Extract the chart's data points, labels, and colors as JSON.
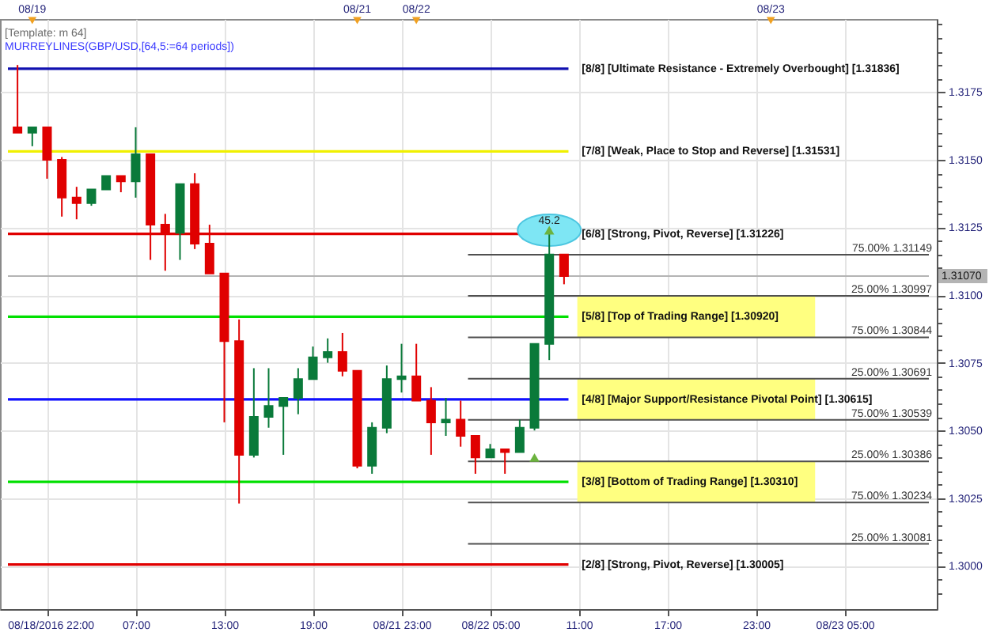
{
  "chart_data": {
    "type": "candlestick",
    "annotations": [
      "[Template: m 64]",
      "MURREYLINES(GBP/USD,[64,5:=64 periods])",
      "08/19",
      "08/21",
      "08/22",
      "08/23",
      {
        "text": "45.2",
        "y": 1.3124
      }
    ],
    "categories": [
      null,
      null,
      "08/18/2016 22:00",
      null,
      null,
      null,
      null,
      null,
      "07:00",
      null,
      null,
      null,
      null,
      null,
      "13:00",
      null,
      null,
      null,
      null,
      null,
      "19:00",
      null,
      null,
      null,
      null,
      null,
      "08/21 23:00",
      null,
      null,
      null,
      null,
      null,
      "08/22 05:00",
      null,
      null,
      null,
      null,
      null,
      "11:00",
      null,
      null,
      null,
      null,
      null,
      "17:00",
      null,
      null,
      null,
      null,
      null,
      "23:00",
      null,
      null,
      null,
      null,
      null,
      "08/23 05:00",
      null,
      null,
      null,
      null,
      null
    ],
    "ohlc": [
      [
        1.3162,
        1.3185,
        1.316,
        1.316
      ],
      [
        1.316,
        1.3162,
        1.3155,
        1.3162
      ],
      [
        1.3162,
        1.3162,
        1.3143,
        1.315
      ],
      [
        1.315,
        1.3151,
        1.3129,
        1.3136
      ],
      [
        1.3136,
        1.314,
        1.3128,
        1.3134
      ],
      [
        1.3134,
        1.3139,
        1.3133,
        1.3139
      ],
      [
        1.3139,
        1.3144,
        1.3139,
        1.3144
      ],
      [
        1.3144,
        1.3144,
        1.3138,
        1.3142
      ],
      [
        1.3142,
        1.3162,
        1.3136,
        1.3152
      ],
      [
        1.3152,
        1.3152,
        1.3113,
        1.3126
      ],
      [
        1.3126,
        1.313,
        1.3109,
        1.3123
      ],
      [
        1.3123,
        1.3141,
        1.3113,
        1.3141
      ],
      [
        1.3141,
        1.3145,
        1.3117,
        1.3119
      ],
      [
        1.3119,
        1.3126,
        1.3108,
        1.3108
      ],
      [
        1.3108,
        1.3108,
        1.3053,
        1.3083
      ],
      [
        1.3083,
        1.3091,
        1.3023,
        1.3041
      ],
      [
        1.3041,
        1.3073,
        1.304,
        1.3055
      ],
      [
        1.3055,
        1.3073,
        1.3051,
        1.3059
      ],
      [
        1.3059,
        1.3062,
        1.3041,
        1.3062
      ],
      [
        1.3062,
        1.3073,
        1.3056,
        1.3069
      ],
      [
        1.3069,
        1.3081,
        1.3069,
        1.3077
      ],
      [
        1.3077,
        1.3084,
        1.3075,
        1.3079
      ],
      [
        1.3079,
        1.3086,
        1.307,
        1.3072
      ],
      [
        1.3072,
        1.3072,
        1.3036,
        1.3037
      ],
      [
        1.3037,
        1.3053,
        1.3034,
        1.3051
      ],
      [
        1.3051,
        1.3074,
        1.3049,
        1.3069
      ],
      [
        1.3069,
        1.3082,
        1.3064,
        1.307
      ],
      [
        1.307,
        1.3082,
        1.3061,
        1.3061
      ],
      [
        1.3061,
        1.3066,
        1.3041,
        1.3053
      ],
      [
        1.3053,
        1.3062,
        1.3048,
        1.3054
      ],
      [
        1.3054,
        1.3061,
        1.3044,
        1.3048
      ],
      [
        1.3048,
        1.3048,
        1.3034,
        1.304
      ],
      [
        1.304,
        1.3045,
        1.304,
        1.3043
      ],
      [
        1.3043,
        1.3043,
        1.3034,
        1.3042
      ],
      [
        1.3042,
        1.3054,
        1.3042,
        1.3051
      ],
      [
        1.3051,
        1.3082,
        1.305,
        1.3082
      ],
      [
        1.3082,
        1.3124,
        1.3076,
        1.3115
      ],
      [
        1.3115,
        1.3115,
        1.3104,
        1.3107
      ],
      null,
      null,
      null,
      null,
      null,
      null,
      null,
      null,
      null,
      null,
      null,
      null,
      null,
      null,
      null,
      null,
      null,
      null,
      null,
      null,
      null,
      null,
      null,
      null
    ],
    "colors": [
      "#e00000",
      "#0a7a3a",
      "#e00000",
      "#e00000",
      "#e00000",
      "#0a7a3a",
      "#0a7a3a",
      "#e00000",
      "#0a7a3a",
      "#e00000",
      "#e00000",
      "#0a7a3a",
      "#e00000",
      "#e00000",
      "#e00000",
      "#e00000",
      "#0a7a3a",
      "#0a7a3a",
      "#0a7a3a",
      "#0a7a3a",
      "#0a7a3a",
      "#0a7a3a",
      "#e00000",
      "#e00000",
      "#0a7a3a",
      "#0a7a3a",
      "#0a7a3a",
      "#e00000",
      "#e00000",
      "#0a7a3a",
      "#e00000",
      "#e00000",
      "#0a7a3a",
      "#e00000",
      "#0a7a3a",
      "#0a7a3a",
      "#0a7a3a",
      "#e00000",
      null,
      null,
      null,
      null,
      null,
      null,
      null,
      null,
      null,
      null,
      null,
      null,
      null,
      null,
      null,
      null,
      null,
      null,
      null,
      null,
      null,
      null,
      null,
      null
    ],
    "series": [
      {
        "type": "scatter",
        "color": "#6cb33f",
        "marker": "triangle",
        "values": [
          null,
          null,
          null,
          null,
          null,
          null,
          null,
          null,
          null,
          null,
          null,
          null,
          null,
          null,
          null,
          null,
          null,
          null,
          null,
          null,
          null,
          null,
          null,
          null,
          null,
          null,
          null,
          null,
          null,
          null,
          null,
          null,
          null,
          null,
          null,
          1.304,
          1.3124,
          null,
          null,
          null,
          null,
          null,
          null,
          null,
          null,
          null,
          null,
          null,
          null,
          null,
          null,
          null,
          null,
          null,
          null,
          null,
          null,
          null,
          null,
          null,
          null,
          null
        ]
      }
    ],
    "ylim": [
      1.2984,
      1.3202
    ],
    "yticks": [
      {
        "value": 1.299,
        "label": null
      },
      {
        "value": 1.2995,
        "label": null
      },
      {
        "value": 1.3,
        "label": "1.3000"
      },
      {
        "value": 1.3005,
        "label": null
      },
      {
        "value": 1.301,
        "label": null
      },
      {
        "value": 1.3015,
        "label": null
      },
      {
        "value": 1.302,
        "label": null
      },
      1.3025,
      {
        "value": 1.303,
        "label": null
      },
      {
        "value": 1.3035,
        "label": null
      },
      {
        "value": 1.304,
        "label": null
      },
      {
        "value": 1.3045,
        "label": null
      },
      {
        "value": 1.305,
        "label": "1.3050"
      },
      {
        "value": 1.3055,
        "label": null
      },
      {
        "value": 1.306,
        "label": null
      },
      {
        "value": 1.3065,
        "label": null
      },
      {
        "value": 1.307,
        "label": null
      },
      1.3075,
      {
        "value": 1.308,
        "label": null
      },
      {
        "value": 1.3085,
        "label": null
      },
      {
        "value": 1.309,
        "label": null
      },
      {
        "value": 1.3095,
        "label": null
      },
      {
        "value": 1.31,
        "label": "1.3100"
      },
      {
        "value": 1.3105,
        "label": null
      },
      {
        "value": 1.311,
        "label": null
      },
      {
        "value": 1.3115,
        "label": null
      },
      {
        "value": 1.312,
        "label": null
      },
      1.3125,
      {
        "value": 1.313,
        "label": null
      },
      {
        "value": 1.3135,
        "label": null
      },
      {
        "value": 1.314,
        "label": null
      },
      {
        "value": 1.3145,
        "label": null
      },
      {
        "value": 1.315,
        "label": "1.3150"
      },
      {
        "value": 1.3155,
        "label": null
      },
      {
        "value": 1.316,
        "label": null
      },
      {
        "value": 1.3165,
        "label": null
      },
      {
        "value": 1.317,
        "label": null
      },
      1.3175,
      {
        "value": 1.318,
        "label": null
      },
      {
        "value": 1.3185,
        "label": null
      },
      {
        "value": 1.319,
        "label": null
      },
      {
        "value": 1.3195,
        "label": null
      },
      {
        "value": 1.32,
        "label": null
      }
    ],
    "grid": true,
    "ref_lines": [
      {
        "axis": "y",
        "value": 1.31836,
        "label": "[8/8] [Ultimate Resistance - Extremely Overbought] [1.31836]",
        "color": "#1010b0"
      },
      {
        "axis": "y",
        "value": 1.31531,
        "label": "[7/8] [Weak, Place to Stop and Reverse] [1.31531]",
        "color": "#f0f000"
      },
      {
        "axis": "y",
        "value": 1.31226,
        "label": "[6/8] [Strong, Pivot, Reverse] [1.31226]",
        "color": "#e00000"
      },
      {
        "axis": "y",
        "value": 1.3092,
        "label": "[5/8] [Top of Trading Range] [1.30920]",
        "color": "#00e000"
      },
      {
        "axis": "y",
        "value": 1.30615,
        "label": "[4/8] [Major Support/Resistance Pivotal Point] [1.30615]",
        "color": "#1010ff"
      },
      {
        "axis": "y",
        "value": 1.3031,
        "label": "[3/8] [Bottom of Trading Range] [1.30310]",
        "color": "#00e000"
      },
      {
        "axis": "y",
        "value": 1.30005,
        "label": "[2/8] [Strong, Pivot, Reverse] [1.30005]",
        "color": "#e00000"
      },
      {
        "axis": "y",
        "value": 1.31149,
        "label": "75.00% 1.31149",
        "color": "#505050"
      },
      {
        "axis": "y",
        "value": 1.30997,
        "label": "25.00% 1.30997",
        "color": "#505050"
      },
      {
        "axis": "y",
        "value": 1.30844,
        "label": "75.00% 1.30844",
        "color": "#505050"
      },
      {
        "axis": "y",
        "value": 1.30691,
        "label": "25.00% 1.30691",
        "color": "#505050"
      },
      {
        "axis": "y",
        "value": 1.30539,
        "label": "75.00% 1.30539",
        "color": "#505050"
      },
      {
        "axis": "y",
        "value": 1.30386,
        "label": "25.00% 1.30386",
        "color": "#505050"
      },
      {
        "axis": "y",
        "value": 1.30234,
        "label": "75.00% 1.30234",
        "color": "#505050"
      },
      {
        "axis": "y",
        "value": 1.30081,
        "label": "25.00% 1.30081",
        "color": "#505050"
      },
      {
        "axis": "y",
        "value": 1.3107,
        "label": "1.31070",
        "color": "#b4b4b4"
      }
    ],
    "bands": [
      {
        "axis": "y",
        "from": 1.30844,
        "to": 1.30997,
        "color": "#ffff80"
      },
      {
        "axis": "y",
        "from": 1.30539,
        "to": 1.30691,
        "color": "#ffff80"
      },
      {
        "axis": "y",
        "from": 1.30234,
        "to": 1.30386,
        "color": "#ffff80"
      }
    ]
  }
}
